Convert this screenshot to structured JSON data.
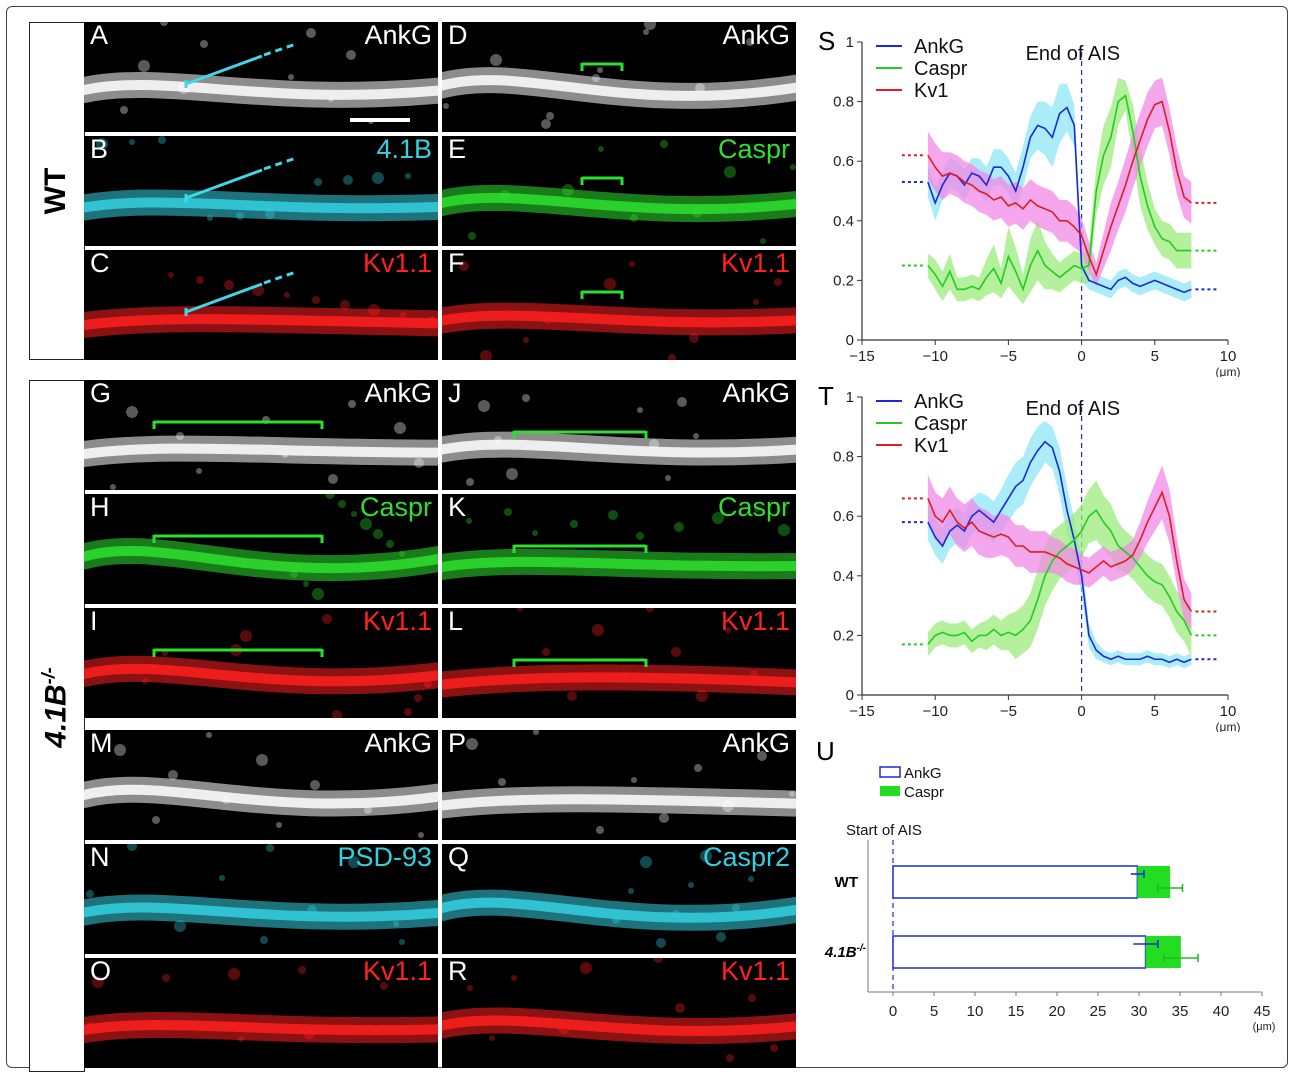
{
  "conditions": {
    "wt": "WT",
    "ko_base": "4.1B",
    "ko_sup": "-/-"
  },
  "panels": [
    {
      "letter": "A",
      "marker": "AnkG",
      "color": "#ffffff"
    },
    {
      "letter": "B",
      "marker": "4.1B",
      "color": "#35d0e0"
    },
    {
      "letter": "C",
      "marker": "Kv1.1",
      "color": "#ff2020"
    },
    {
      "letter": "D",
      "marker": "AnkG",
      "color": "#ffffff"
    },
    {
      "letter": "E",
      "marker": "Caspr",
      "color": "#2ee02e"
    },
    {
      "letter": "F",
      "marker": "Kv1.1",
      "color": "#ff2020"
    },
    {
      "letter": "G",
      "marker": "AnkG",
      "color": "#ffffff"
    },
    {
      "letter": "H",
      "marker": "Caspr",
      "color": "#2ee02e"
    },
    {
      "letter": "I",
      "marker": "Kv1.1",
      "color": "#ff2020"
    },
    {
      "letter": "J",
      "marker": "AnkG",
      "color": "#ffffff"
    },
    {
      "letter": "K",
      "marker": "Caspr",
      "color": "#2ee02e"
    },
    {
      "letter": "L",
      "marker": "Kv1.1",
      "color": "#ff2020"
    },
    {
      "letter": "M",
      "marker": "AnkG",
      "color": "#ffffff"
    },
    {
      "letter": "N",
      "marker": "PSD-93",
      "color": "#35d0e0"
    },
    {
      "letter": "O",
      "marker": "Kv1.1",
      "color": "#ff2020"
    },
    {
      "letter": "P",
      "marker": "AnkG",
      "color": "#ffffff"
    },
    {
      "letter": "Q",
      "marker": "Caspr2",
      "color": "#35d0e0"
    },
    {
      "letter": "R",
      "marker": "Kv1.1",
      "color": "#ff2020"
    }
  ],
  "colors": {
    "ankg": "#1a2bd6",
    "caspr": "#22cc22",
    "kv1": "#dd1f1f",
    "ankg_band": "#8ee6f5",
    "caspr_band": "#9cec7c",
    "kv1_band": "#f08ae6"
  },
  "chart_data": [
    {
      "panel": "S",
      "type": "line",
      "annotation": "End of AIS",
      "xlabel": "(μm)",
      "xlim": [
        -15,
        10
      ],
      "ylim": [
        0,
        1
      ],
      "xticks": [
        -15,
        -10,
        -5,
        0,
        5,
        10
      ],
      "yticks": [
        0,
        0.2,
        0.4,
        0.6,
        0.8,
        1
      ],
      "ytick_labels": [
        "0",
        "0.2",
        "0.4",
        "0.6",
        "0.8",
        "1"
      ],
      "legend": [
        "AnkG",
        "Caspr",
        "Kv1"
      ],
      "x": [
        -10.5,
        -10,
        -9.5,
        -9,
        -8.5,
        -8,
        -7.5,
        -7,
        -6.5,
        -6,
        -5.5,
        -5,
        -4.5,
        -4,
        -3.5,
        -3,
        -2.5,
        -2,
        -1.5,
        -1,
        -0.5,
        0,
        0.5,
        1,
        1.5,
        2,
        2.5,
        3,
        3.5,
        4,
        4.5,
        5,
        5.5,
        6,
        6.5,
        7,
        7.5
      ],
      "series": [
        {
          "name": "AnkG",
          "values": [
            0.53,
            0.46,
            0.52,
            0.56,
            0.55,
            0.52,
            0.56,
            0.55,
            0.52,
            0.58,
            0.58,
            0.55,
            0.5,
            0.58,
            0.68,
            0.72,
            0.71,
            0.68,
            0.76,
            0.78,
            0.72,
            0.25,
            0.2,
            0.19,
            0.18,
            0.17,
            0.2,
            0.21,
            0.19,
            0.18,
            0.19,
            0.2,
            0.19,
            0.18,
            0.17,
            0.16,
            0.17
          ],
          "band": [
            0.05,
            0.06,
            0.05,
            0.05,
            0.05,
            0.05,
            0.05,
            0.06,
            0.06,
            0.06,
            0.06,
            0.06,
            0.06,
            0.07,
            0.07,
            0.08,
            0.09,
            0.1,
            0.1,
            0.08,
            0.07,
            0.05,
            0.03,
            0.03,
            0.03,
            0.03,
            0.03,
            0.03,
            0.03,
            0.03,
            0.03,
            0.03,
            0.03,
            0.03,
            0.03,
            0.03,
            0.03
          ]
        },
        {
          "name": "Caspr",
          "values": [
            0.25,
            0.22,
            0.18,
            0.23,
            0.17,
            0.17,
            0.18,
            0.17,
            0.21,
            0.24,
            0.19,
            0.28,
            0.23,
            0.17,
            0.25,
            0.3,
            0.25,
            0.23,
            0.21,
            0.23,
            0.25,
            0.24,
            0.25,
            0.5,
            0.62,
            0.68,
            0.8,
            0.82,
            0.7,
            0.55,
            0.45,
            0.38,
            0.34,
            0.33,
            0.3,
            0.3,
            0.3
          ],
          "band": [
            0.04,
            0.05,
            0.05,
            0.06,
            0.04,
            0.04,
            0.04,
            0.04,
            0.06,
            0.08,
            0.05,
            0.1,
            0.08,
            0.05,
            0.09,
            0.1,
            0.08,
            0.06,
            0.05,
            0.05,
            0.05,
            0.05,
            0.06,
            0.08,
            0.1,
            0.1,
            0.08,
            0.05,
            0.09,
            0.1,
            0.08,
            0.06,
            0.06,
            0.06,
            0.06,
            0.06,
            0.06
          ]
        },
        {
          "name": "Kv1",
          "values": [
            0.62,
            0.58,
            0.55,
            0.56,
            0.55,
            0.53,
            0.52,
            0.5,
            0.49,
            0.47,
            0.48,
            0.45,
            0.46,
            0.44,
            0.47,
            0.45,
            0.44,
            0.43,
            0.4,
            0.4,
            0.38,
            0.35,
            0.28,
            0.22,
            0.3,
            0.38,
            0.45,
            0.52,
            0.6,
            0.67,
            0.74,
            0.79,
            0.8,
            0.7,
            0.57,
            0.48,
            0.46
          ],
          "band": [
            0.08,
            0.08,
            0.08,
            0.07,
            0.07,
            0.07,
            0.07,
            0.07,
            0.07,
            0.07,
            0.07,
            0.07,
            0.07,
            0.07,
            0.07,
            0.07,
            0.07,
            0.07,
            0.07,
            0.07,
            0.07,
            0.06,
            0.05,
            0.04,
            0.06,
            0.08,
            0.08,
            0.09,
            0.09,
            0.09,
            0.09,
            0.08,
            0.08,
            0.08,
            0.08,
            0.07,
            0.07
          ]
        }
      ]
    },
    {
      "panel": "T",
      "type": "line",
      "annotation": "End of AIS",
      "xlabel": "(μm)",
      "xlim": [
        -15,
        10
      ],
      "ylim": [
        0,
        1
      ],
      "xticks": [
        -15,
        -10,
        -5,
        0,
        5,
        10
      ],
      "yticks": [
        0,
        0.2,
        0.4,
        0.6,
        0.8,
        1
      ],
      "ytick_labels": [
        "0",
        "0.2",
        "0.4",
        "0.6",
        "0.8",
        "1"
      ],
      "legend": [
        "AnkG",
        "Caspr",
        "Kv1"
      ],
      "x": [
        -10.5,
        -10,
        -9.5,
        -9,
        -8.5,
        -8,
        -7.5,
        -7,
        -6.5,
        -6,
        -5.5,
        -5,
        -4.5,
        -4,
        -3.5,
        -3,
        -2.5,
        -2,
        -1.5,
        -1,
        -0.5,
        0,
        0.5,
        1,
        1.5,
        2,
        2.5,
        3,
        3.5,
        4,
        4.5,
        5,
        5.5,
        6,
        6.5,
        7,
        7.5
      ],
      "series": [
        {
          "name": "AnkG",
          "values": [
            0.58,
            0.53,
            0.5,
            0.55,
            0.57,
            0.55,
            0.6,
            0.62,
            0.6,
            0.58,
            0.62,
            0.66,
            0.7,
            0.72,
            0.78,
            0.82,
            0.85,
            0.83,
            0.75,
            0.62,
            0.52,
            0.4,
            0.2,
            0.15,
            0.13,
            0.12,
            0.13,
            0.12,
            0.12,
            0.12,
            0.13,
            0.12,
            0.12,
            0.11,
            0.12,
            0.11,
            0.12
          ],
          "band": [
            0.06,
            0.06,
            0.06,
            0.06,
            0.06,
            0.06,
            0.06,
            0.06,
            0.07,
            0.07,
            0.07,
            0.08,
            0.08,
            0.08,
            0.08,
            0.08,
            0.07,
            0.07,
            0.08,
            0.08,
            0.07,
            0.06,
            0.04,
            0.03,
            0.02,
            0.02,
            0.02,
            0.02,
            0.02,
            0.02,
            0.02,
            0.02,
            0.02,
            0.02,
            0.02,
            0.02,
            0.02
          ]
        },
        {
          "name": "Caspr",
          "values": [
            0.17,
            0.2,
            0.21,
            0.2,
            0.2,
            0.21,
            0.18,
            0.2,
            0.2,
            0.22,
            0.2,
            0.21,
            0.2,
            0.22,
            0.25,
            0.32,
            0.4,
            0.45,
            0.48,
            0.5,
            0.52,
            0.55,
            0.6,
            0.62,
            0.58,
            0.55,
            0.5,
            0.48,
            0.46,
            0.43,
            0.4,
            0.38,
            0.37,
            0.33,
            0.28,
            0.25,
            0.2
          ],
          "band": [
            0.04,
            0.04,
            0.04,
            0.04,
            0.04,
            0.04,
            0.04,
            0.04,
            0.05,
            0.05,
            0.05,
            0.06,
            0.08,
            0.08,
            0.09,
            0.1,
            0.1,
            0.1,
            0.09,
            0.09,
            0.09,
            0.09,
            0.09,
            0.1,
            0.09,
            0.09,
            0.08,
            0.07,
            0.07,
            0.07,
            0.07,
            0.07,
            0.07,
            0.07,
            0.07,
            0.07,
            0.07
          ]
        },
        {
          "name": "Kv1",
          "values": [
            0.66,
            0.6,
            0.58,
            0.62,
            0.58,
            0.56,
            0.58,
            0.55,
            0.54,
            0.53,
            0.54,
            0.53,
            0.5,
            0.5,
            0.48,
            0.48,
            0.48,
            0.47,
            0.46,
            0.44,
            0.43,
            0.42,
            0.41,
            0.43,
            0.45,
            0.43,
            0.44,
            0.45,
            0.47,
            0.52,
            0.58,
            0.63,
            0.68,
            0.6,
            0.45,
            0.32,
            0.28
          ],
          "band": [
            0.08,
            0.08,
            0.08,
            0.08,
            0.08,
            0.08,
            0.08,
            0.08,
            0.08,
            0.07,
            0.07,
            0.07,
            0.07,
            0.07,
            0.07,
            0.07,
            0.07,
            0.06,
            0.06,
            0.06,
            0.06,
            0.05,
            0.05,
            0.05,
            0.05,
            0.05,
            0.05,
            0.05,
            0.05,
            0.06,
            0.07,
            0.08,
            0.09,
            0.09,
            0.08,
            0.07,
            0.06
          ]
        }
      ]
    },
    {
      "panel": "U",
      "type": "bar",
      "orientation": "horizontal",
      "stacked": true,
      "categories": [
        "WT",
        "4.1B"
      ],
      "category_sup": [
        "",
        "-/-"
      ],
      "xlabel": "(μm)",
      "xlim": [
        0,
        45
      ],
      "xticks": [
        0,
        5,
        10,
        15,
        20,
        25,
        30,
        35,
        40,
        45
      ],
      "annotation": "Start of AIS",
      "legend": [
        "AnkG",
        "Caspr"
      ],
      "series": [
        {
          "name": "AnkG",
          "values": [
            29.8,
            30.8
          ],
          "error": [
            0.8,
            1.5
          ]
        },
        {
          "name": "Caspr",
          "values": [
            4.0,
            4.3
          ],
          "error": [
            1.5,
            2.1
          ]
        }
      ]
    }
  ]
}
